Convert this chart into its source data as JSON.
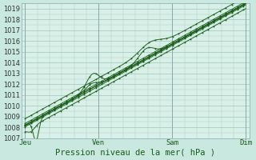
{
  "xlabel": "Pression niveau de la mer( hPa )",
  "bg_outer": "#c8e8e0",
  "bg_inner": "#d8f0e8",
  "grid_color": "#a8ccc4",
  "line_color": "#1a5c1a",
  "ylim": [
    1007,
    1019.5
  ],
  "yticks": [
    1007,
    1008,
    1009,
    1010,
    1011,
    1012,
    1013,
    1014,
    1015,
    1016,
    1017,
    1018,
    1019
  ],
  "xtick_labels": [
    "Jeu",
    "Ven",
    "Sam",
    "Dim"
  ],
  "xtick_positions": [
    0,
    1,
    2,
    3
  ],
  "xlim": [
    -0.05,
    3.05
  ],
  "xlabel_fontsize": 7.5,
  "ytick_fontsize": 6.0,
  "xtick_fontsize": 6.5
}
